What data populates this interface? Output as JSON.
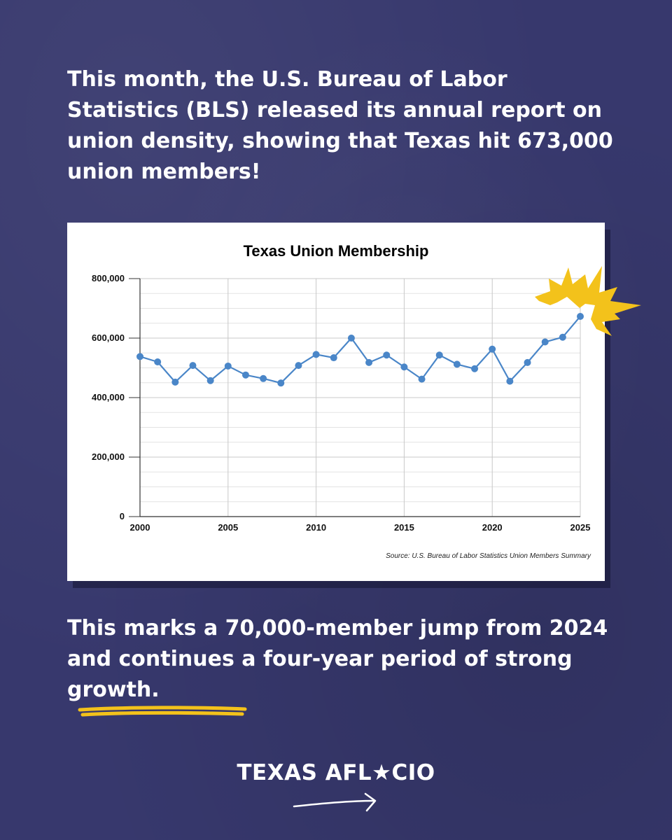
{
  "headline": "This month, the U.S. Bureau of Labor Statistics (BLS) released its annual report on union density, showing that Texas hit 673,000 union members!",
  "subline": {
    "before": "This marks a 70,000-member jump from 2024 and continues a four-year period of ",
    "highlight": "strong growth",
    "after": "."
  },
  "brand": {
    "logo_text": "TEXAS AFL★CIO"
  },
  "colors": {
    "background": "#37386d",
    "line": "#4a86c8",
    "burst": "#f3c21b",
    "underline": "#f3c21b"
  },
  "chart_data": {
    "type": "line",
    "title": "Texas Union Membership",
    "source": "Source: U.S. Bureau of Labor Statistics Union Members Summary",
    "xlim": [
      2000,
      2025
    ],
    "ylim": [
      0,
      800000
    ],
    "x_ticks": [
      "2000",
      "2005",
      "2010",
      "2015",
      "2020",
      "2025"
    ],
    "y_ticks": [
      "0",
      "200,000",
      "400,000",
      "600,000",
      "800,000"
    ],
    "grid": true,
    "series": [
      {
        "x": [
          2000,
          2001,
          2002,
          2003,
          2004,
          2005,
          2006,
          2007,
          2008,
          2009,
          2010,
          2011,
          2012,
          2013,
          2014,
          2015,
          2016,
          2017,
          2018,
          2019,
          2020,
          2021,
          2022,
          2023,
          2024,
          2025
        ],
        "y": [
          538000,
          520000,
          452000,
          508000,
          457000,
          506000,
          476000,
          464000,
          449000,
          508000,
          545000,
          534000,
          600000,
          518000,
          543000,
          503000,
          462000,
          543000,
          512000,
          497000,
          563000,
          455000,
          518000,
          587000,
          603000,
          673000
        ]
      }
    ]
  }
}
